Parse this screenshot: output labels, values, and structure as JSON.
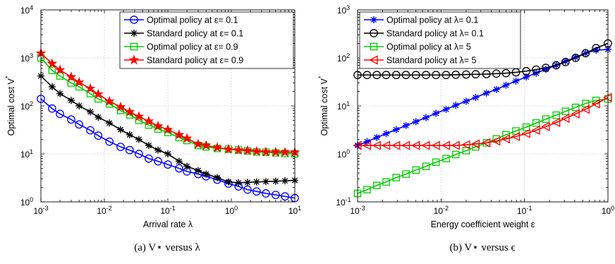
{
  "chart_data": [
    {
      "type": "line",
      "caption": "(a)  V⋆ versus λ",
      "xlabel": "Arrival rate λ",
      "ylabel": "Optimal cost V",
      "ylabel_sup": "*",
      "xscale": "log",
      "yscale": "log",
      "xlim": [
        0.001,
        10
      ],
      "ylim": [
        1,
        10000
      ],
      "grid": true,
      "legend_position": "top-right",
      "xticks": [
        {
          "base": "10",
          "exp": "-3"
        },
        {
          "base": "10",
          "exp": "-2"
        },
        {
          "base": "10",
          "exp": "-1"
        },
        {
          "base": "10",
          "exp": "0"
        },
        {
          "base": "10",
          "exp": "1"
        }
      ],
      "yticks": [
        {
          "base": "10",
          "exp": "0"
        },
        {
          "base": "10",
          "exp": "1"
        },
        {
          "base": "10",
          "exp": "2"
        },
        {
          "base": "10",
          "exp": "3"
        },
        {
          "base": "10",
          "exp": "4"
        }
      ],
      "x": [
        0.001,
        0.0015,
        0.002,
        0.003,
        0.004,
        0.006,
        0.008,
        0.012,
        0.018,
        0.025,
        0.035,
        0.05,
        0.07,
        0.1,
        0.15,
        0.2,
        0.3,
        0.4,
        0.6,
        0.9,
        1.3,
        1.8,
        2.5,
        3.5,
        5,
        7,
        10
      ],
      "series": [
        {
          "name": "Optimal policy at ε= 0.1",
          "color": "#0000ff",
          "marker": "circle",
          "values": [
            140,
            88,
            68,
            52,
            41,
            31,
            24,
            18,
            14,
            12,
            10,
            8,
            7,
            6,
            5,
            4.3,
            3.8,
            3.4,
            2.9,
            2.4,
            2.1,
            1.8,
            1.65,
            1.5,
            1.4,
            1.3,
            1.2
          ]
        },
        {
          "name": "Standard policy at ε= 0.1",
          "color": "#000000",
          "marker": "asterisk",
          "values": [
            420,
            250,
            180,
            130,
            100,
            75,
            58,
            44,
            32,
            25,
            20,
            15,
            12,
            10,
            7,
            5.5,
            4.5,
            3.8,
            3.2,
            2.6,
            2.5,
            2.55,
            2.6,
            2.65,
            2.7,
            2.75,
            2.8
          ]
        },
        {
          "name": "Optimal policy at ε= 0.9",
          "color": "#00cc00",
          "marker": "square",
          "values": [
            1000,
            550,
            420,
            300,
            250,
            180,
            140,
            110,
            80,
            65,
            50,
            40,
            33,
            28,
            22,
            19,
            15,
            14,
            13,
            12.5,
            12,
            11.5,
            11,
            10.8,
            10.5,
            10.2,
            10
          ]
        },
        {
          "name": "Standard policy at ε= 0.9",
          "color": "#ff0000",
          "marker": "star",
          "values": [
            1250,
            760,
            560,
            400,
            310,
            230,
            175,
            125,
            95,
            75,
            60,
            48,
            38,
            32,
            25,
            21,
            16,
            15,
            13.5,
            12.5,
            12,
            11.7,
            11.3,
            11,
            10.9,
            10.8,
            10.8
          ]
        }
      ]
    },
    {
      "type": "line",
      "caption": "(b)  V⋆ versus ϵ",
      "xlabel": "Energy coefficient weight  ε",
      "ylabel": "Optimal cost  V",
      "ylabel_sup": "*",
      "xscale": "log",
      "yscale": "log",
      "xlim": [
        0.001,
        1
      ],
      "ylim": [
        0.1,
        1000
      ],
      "grid": true,
      "legend_position": "top-left",
      "xticks": [
        {
          "base": "10",
          "exp": "-3"
        },
        {
          "base": "10",
          "exp": "-2"
        },
        {
          "base": "10",
          "exp": "-1"
        },
        {
          "base": "10",
          "exp": "0"
        }
      ],
      "yticks": [
        {
          "base": "10",
          "exp": "-1"
        },
        {
          "base": "10",
          "exp": "0"
        },
        {
          "base": "10",
          "exp": "1"
        },
        {
          "base": "10",
          "exp": "2"
        },
        {
          "base": "10",
          "exp": "3"
        }
      ],
      "x": [
        0.001,
        0.0013,
        0.0017,
        0.0022,
        0.0029,
        0.0038,
        0.005,
        0.0066,
        0.0087,
        0.0115,
        0.015,
        0.02,
        0.026,
        0.035,
        0.046,
        0.06,
        0.079,
        0.105,
        0.138,
        0.18,
        0.24,
        0.31,
        0.41,
        0.54,
        0.72,
        1.0
      ],
      "series": [
        {
          "name": "Optimal policy at λ= 0.1",
          "color": "#0000ff",
          "marker": "asterisk",
          "values": [
            1.5,
            1.8,
            2.2,
            2.65,
            3.2,
            3.9,
            4.7,
            5.7,
            7,
            8.5,
            10.3,
            12.5,
            15,
            18.5,
            22,
            27,
            33,
            40,
            48,
            58,
            70,
            85,
            103,
            125,
            145,
            150
          ]
        },
        {
          "name": "Standard policy at λ= 0.1",
          "color": "#000000",
          "marker": "circle",
          "values": [
            44,
            44,
            44,
            44,
            44,
            44,
            44,
            44,
            44,
            44,
            44.5,
            45,
            45.5,
            46,
            47,
            48,
            50,
            53,
            57,
            62,
            70,
            82,
            100,
            125,
            160,
            200
          ]
        },
        {
          "name": "Optimal policy at λ= 5",
          "color": "#00cc00",
          "marker": "square",
          "values": [
            0.15,
            0.18,
            0.22,
            0.26,
            0.32,
            0.38,
            0.46,
            0.55,
            0.67,
            0.8,
            0.97,
            1.17,
            1.4,
            1.7,
            2.05,
            2.5,
            3,
            3.6,
            4.4,
            5.3,
            6.4,
            7.7,
            9.3,
            11.2,
            13,
            14
          ]
        },
        {
          "name": "Standard policy at λ= 5",
          "color": "#ff0000",
          "marker": "triangle-left",
          "values": [
            1.5,
            1.5,
            1.5,
            1.5,
            1.5,
            1.5,
            1.5,
            1.5,
            1.5,
            1.5,
            1.5,
            1.55,
            1.6,
            1.7,
            1.85,
            2.05,
            2.3,
            2.65,
            3.1,
            3.7,
            4.5,
            5.5,
            6.8,
            8.5,
            11,
            15
          ]
        }
      ]
    }
  ]
}
